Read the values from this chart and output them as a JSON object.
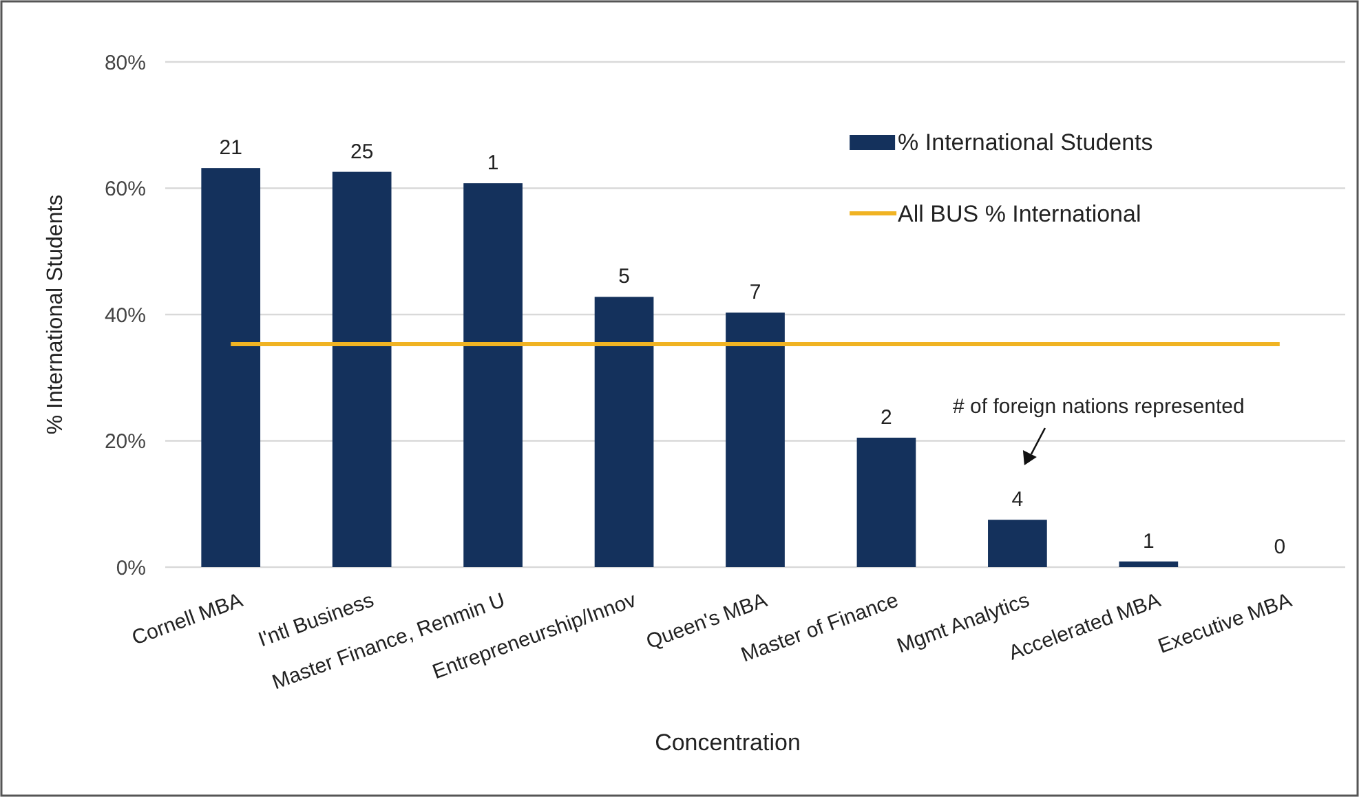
{
  "chart_data": {
    "type": "bar",
    "xlabel": "Concentration",
    "ylabel": "% International Students",
    "categories": [
      "Cornell MBA",
      "I'ntl Business",
      "Master Finance, Renmin U",
      "Entrepreneurship/Innov",
      "Queen's MBA",
      "Master of Finance",
      "Mgmt Analytics",
      "Accelerated MBA",
      "Executive MBA"
    ],
    "series": [
      {
        "name": "% International Students",
        "color": "#14315c",
        "values": [
          63.2,
          62.6,
          60.8,
          42.8,
          40.3,
          20.5,
          7.5,
          0.9,
          0
        ]
      }
    ],
    "ylim": [
      0,
      80
    ],
    "yticks": [
      {
        "value": 0,
        "label": "0%"
      },
      {
        "value": 20,
        "label": "20%"
      },
      {
        "value": 40,
        "label": "40%"
      },
      {
        "value": 60,
        "label": "60%"
      },
      {
        "value": 80,
        "label": "80%"
      }
    ],
    "ref_lines": [
      {
        "axis": "y",
        "value": 35.3,
        "label": "All BUS % International",
        "color": "#f0b323"
      }
    ],
    "annotations": [
      "# of foreign nations represented",
      {
        "text": "21",
        "x": "Cornell MBA",
        "y": 63.2
      },
      {
        "text": "25",
        "x": "I'ntl Business",
        "y": 62.6
      },
      {
        "text": "1",
        "x": "Master Finance, Renmin U",
        "y": 60.8
      },
      {
        "text": "5",
        "x": "Entrepreneurship/Innov",
        "y": 42.8
      },
      {
        "text": "7",
        "x": "Queen's MBA",
        "y": 40.3
      },
      {
        "text": "2",
        "x": "Master of Finance",
        "y": 20.5
      },
      {
        "text": "4",
        "x": "Mgmt Analytics",
        "y": 7.5
      },
      {
        "text": "1",
        "x": "Accelerated MBA",
        "y": 0.9
      },
      {
        "text": "0",
        "x": "Executive MBA",
        "y": 0
      }
    ],
    "grid": "y",
    "legend": "top right"
  }
}
